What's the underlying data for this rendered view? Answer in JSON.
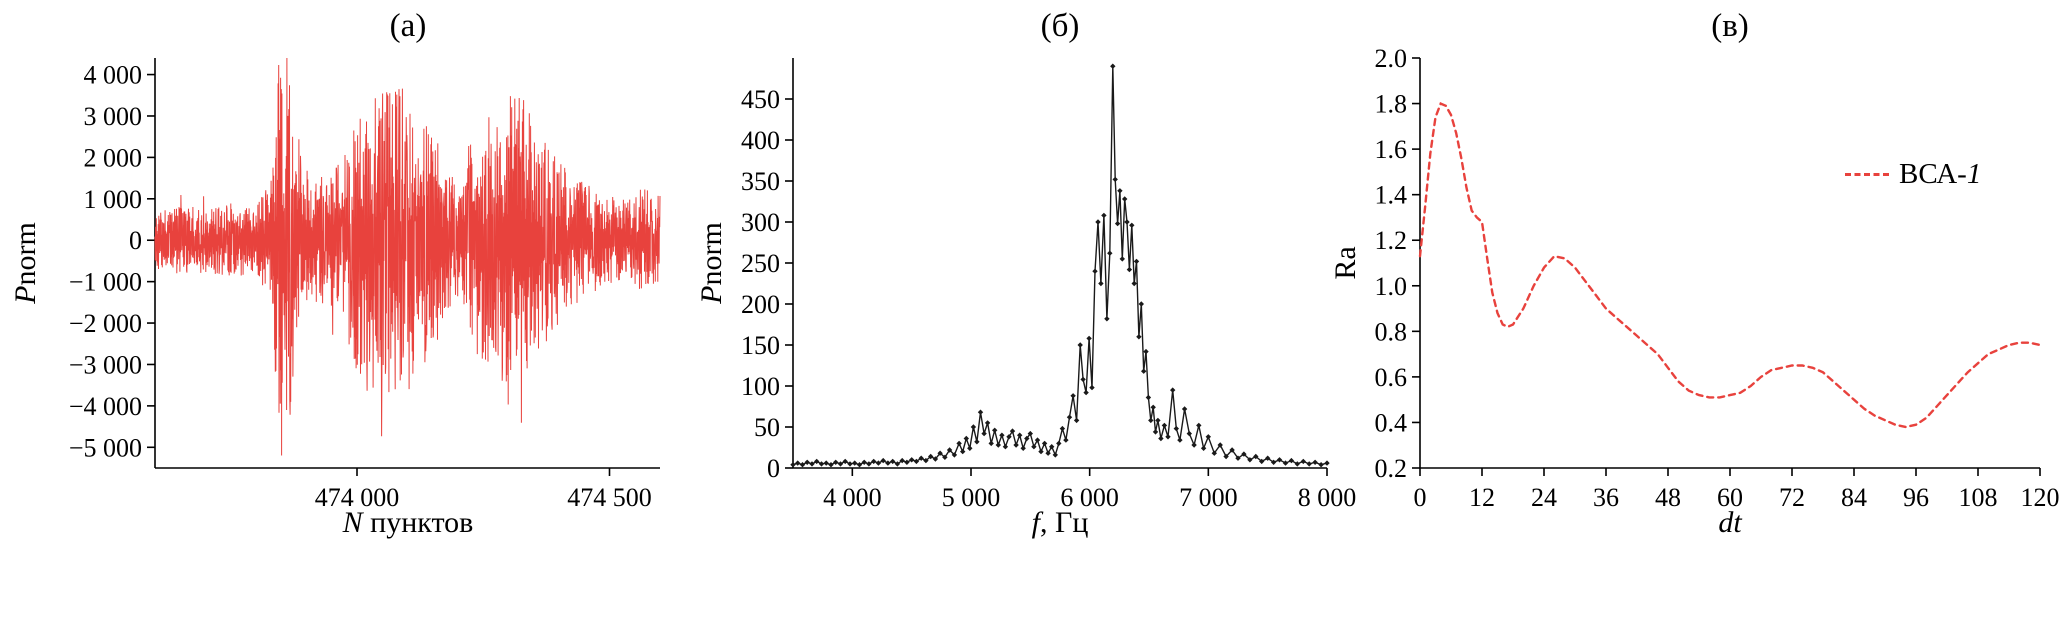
{
  "chart_data": [
    {
      "id": "a",
      "type": "line",
      "title": "(а)",
      "xlabel": {
        "italic": "N",
        "normal": " пунктов"
      },
      "ylabel": {
        "italic": "P",
        "normal": "norm"
      },
      "color": "#e8423d",
      "grid": false,
      "xlim": [
        473600,
        474600
      ],
      "ylim": [
        -5500,
        4400
      ],
      "xticks": [
        474000,
        474500
      ],
      "xtick_labels": [
        "474 000",
        "474 500"
      ],
      "yticks": [
        4000,
        3000,
        2000,
        1000,
        0,
        -1000,
        -2000,
        -3000,
        -4000,
        -5000
      ],
      "ytick_labels": [
        "4 000",
        "3 000",
        "2 000",
        "1 000",
        "0",
        "−1 000",
        "−2 000",
        "−3 000",
        "−4 000",
        "−5 000"
      ],
      "series_description": "dense noisy seismic-like waveform oscillating around 0; amplitude envelope (N, ±Pnorm) sampled below; sharp spike near N=473850 reaching about −5500 and +4300; strong bursts near 474000–474150 and 474250–474380; moderate ±700–1500 elsewhere",
      "envelope": [
        [
          473600,
          700
        ],
        [
          473650,
          850
        ],
        [
          473700,
          800
        ],
        [
          473750,
          900
        ],
        [
          473800,
          800
        ],
        [
          473830,
          1500
        ],
        [
          473845,
          5600
        ],
        [
          473862,
          5600
        ],
        [
          473875,
          2400
        ],
        [
          473910,
          1500
        ],
        [
          473950,
          1600
        ],
        [
          473985,
          2800
        ],
        [
          474020,
          3700
        ],
        [
          474070,
          3900
        ],
        [
          474120,
          3500
        ],
        [
          474160,
          2400
        ],
        [
          474195,
          1400
        ],
        [
          474230,
          2600
        ],
        [
          474270,
          3400
        ],
        [
          474320,
          3600
        ],
        [
          474370,
          2600
        ],
        [
          474410,
          1800
        ],
        [
          474450,
          1400
        ],
        [
          474490,
          1100
        ],
        [
          474530,
          1000
        ],
        [
          474570,
          1300
        ],
        [
          474600,
          1100
        ]
      ],
      "noise_seed": 7,
      "points_count": 1600
    },
    {
      "id": "b",
      "type": "line",
      "title": "(б)",
      "xlabel": {
        "italic": "f",
        "normal": ", Гц"
      },
      "ylabel": {
        "italic": "P",
        "normal": "norm"
      },
      "color": "#1a1a1a",
      "grid": false,
      "marker": "diamond",
      "xlim": [
        3500,
        8000
      ],
      "ylim": [
        0,
        500
      ],
      "xticks": [
        4000,
        5000,
        6000,
        7000,
        8000
      ],
      "xtick_labels": [
        "4 000",
        "5 000",
        "6 000",
        "7 000",
        "8 000"
      ],
      "yticks": [
        0,
        50,
        100,
        150,
        200,
        250,
        300,
        350,
        400,
        450
      ],
      "ytick_labels": [
        "0",
        "50",
        "100",
        "150",
        "200",
        "250",
        "300",
        "350",
        "400",
        "450"
      ],
      "points": [
        [
          3500,
          4
        ],
        [
          3540,
          6
        ],
        [
          3580,
          4
        ],
        [
          3620,
          7
        ],
        [
          3660,
          5
        ],
        [
          3700,
          8
        ],
        [
          3740,
          5
        ],
        [
          3780,
          6
        ],
        [
          3820,
          4
        ],
        [
          3860,
          7
        ],
        [
          3900,
          5
        ],
        [
          3940,
          8
        ],
        [
          3980,
          5
        ],
        [
          4020,
          6
        ],
        [
          4060,
          4
        ],
        [
          4100,
          7
        ],
        [
          4140,
          5
        ],
        [
          4180,
          8
        ],
        [
          4220,
          6
        ],
        [
          4260,
          9
        ],
        [
          4300,
          6
        ],
        [
          4340,
          8
        ],
        [
          4380,
          5
        ],
        [
          4420,
          9
        ],
        [
          4460,
          7
        ],
        [
          4500,
          10
        ],
        [
          4540,
          8
        ],
        [
          4580,
          12
        ],
        [
          4620,
          9
        ],
        [
          4660,
          14
        ],
        [
          4700,
          11
        ],
        [
          4740,
          18
        ],
        [
          4780,
          13
        ],
        [
          4820,
          22
        ],
        [
          4860,
          16
        ],
        [
          4900,
          30
        ],
        [
          4930,
          20
        ],
        [
          4960,
          36
        ],
        [
          4990,
          24
        ],
        [
          5020,
          50
        ],
        [
          5050,
          32
        ],
        [
          5080,
          68
        ],
        [
          5110,
          42
        ],
        [
          5140,
          55
        ],
        [
          5170,
          30
        ],
        [
          5200,
          46
        ],
        [
          5230,
          28
        ],
        [
          5260,
          40
        ],
        [
          5290,
          26
        ],
        [
          5320,
          38
        ],
        [
          5350,
          45
        ],
        [
          5380,
          28
        ],
        [
          5410,
          40
        ],
        [
          5440,
          24
        ],
        [
          5470,
          36
        ],
        [
          5500,
          42
        ],
        [
          5530,
          26
        ],
        [
          5560,
          34
        ],
        [
          5590,
          20
        ],
        [
          5620,
          30
        ],
        [
          5650,
          18
        ],
        [
          5680,
          26
        ],
        [
          5710,
          16
        ],
        [
          5740,
          30
        ],
        [
          5770,
          48
        ],
        [
          5800,
          34
        ],
        [
          5830,
          62
        ],
        [
          5860,
          88
        ],
        [
          5890,
          58
        ],
        [
          5920,
          150
        ],
        [
          5945,
          108
        ],
        [
          5970,
          92
        ],
        [
          5995,
          158
        ],
        [
          6020,
          98
        ],
        [
          6045,
          240
        ],
        [
          6070,
          300
        ],
        [
          6095,
          225
        ],
        [
          6120,
          308
        ],
        [
          6145,
          182
        ],
        [
          6170,
          262
        ],
        [
          6195,
          490
        ],
        [
          6215,
          352
        ],
        [
          6235,
          298
        ],
        [
          6255,
          338
        ],
        [
          6275,
          255
        ],
        [
          6295,
          328
        ],
        [
          6315,
          300
        ],
        [
          6335,
          242
        ],
        [
          6355,
          296
        ],
        [
          6375,
          225
        ],
        [
          6395,
          252
        ],
        [
          6415,
          160
        ],
        [
          6435,
          200
        ],
        [
          6455,
          118
        ],
        [
          6475,
          142
        ],
        [
          6495,
          86
        ],
        [
          6515,
          58
        ],
        [
          6535,
          74
        ],
        [
          6555,
          44
        ],
        [
          6575,
          58
        ],
        [
          6600,
          36
        ],
        [
          6630,
          52
        ],
        [
          6660,
          38
        ],
        [
          6700,
          95
        ],
        [
          6730,
          48
        ],
        [
          6760,
          34
        ],
        [
          6800,
          72
        ],
        [
          6840,
          42
        ],
        [
          6880,
          28
        ],
        [
          6920,
          52
        ],
        [
          6960,
          24
        ],
        [
          7000,
          38
        ],
        [
          7050,
          18
        ],
        [
          7100,
          28
        ],
        [
          7150,
          14
        ],
        [
          7200,
          22
        ],
        [
          7250,
          12
        ],
        [
          7300,
          17
        ],
        [
          7350,
          10
        ],
        [
          7400,
          14
        ],
        [
          7450,
          8
        ],
        [
          7500,
          12
        ],
        [
          7550,
          7
        ],
        [
          7600,
          10
        ],
        [
          7650,
          6
        ],
        [
          7700,
          9
        ],
        [
          7750,
          5
        ],
        [
          7800,
          8
        ],
        [
          7850,
          5
        ],
        [
          7900,
          7
        ],
        [
          7950,
          4
        ],
        [
          8000,
          6
        ]
      ]
    },
    {
      "id": "c",
      "type": "line",
      "title": "(в)",
      "xlabel": {
        "italic": "dt",
        "normal": ""
      },
      "ylabel": {
        "italic": "",
        "normal": "Ra"
      },
      "color": "#e8423d",
      "grid": false,
      "line_style": "dashed",
      "legend": {
        "prefix": "ВСА-",
        "italic_suffix": "1",
        "position": "upper right inside"
      },
      "xlim": [
        0,
        120
      ],
      "ylim": [
        0.2,
        2.0
      ],
      "xticks": [
        0,
        12,
        24,
        36,
        48,
        60,
        72,
        84,
        96,
        108,
        120
      ],
      "xtick_labels": [
        "0",
        "12",
        "24",
        "36",
        "48",
        "60",
        "72",
        "84",
        "96",
        "108",
        "120"
      ],
      "yticks": [
        0.2,
        0.4,
        0.6,
        0.8,
        1.0,
        1.2,
        1.4,
        1.6,
        1.8,
        2.0
      ],
      "ytick_labels": [
        "0.2",
        "0.4",
        "0.6",
        "0.8",
        "1.0",
        "1.2",
        "1.4",
        "1.6",
        "1.8",
        "2.0"
      ],
      "points": [
        [
          0,
          1.13
        ],
        [
          1,
          1.35
        ],
        [
          2,
          1.58
        ],
        [
          3,
          1.74
        ],
        [
          4,
          1.8
        ],
        [
          5,
          1.79
        ],
        [
          6,
          1.75
        ],
        [
          7,
          1.67
        ],
        [
          8,
          1.56
        ],
        [
          9,
          1.43
        ],
        [
          10,
          1.33
        ],
        [
          11,
          1.3
        ],
        [
          12,
          1.28
        ],
        [
          13,
          1.12
        ],
        [
          14,
          0.97
        ],
        [
          15,
          0.88
        ],
        [
          16,
          0.83
        ],
        [
          17,
          0.82
        ],
        [
          18,
          0.83
        ],
        [
          20,
          0.9
        ],
        [
          22,
          1.0
        ],
        [
          24,
          1.08
        ],
        [
          26,
          1.13
        ],
        [
          28,
          1.12
        ],
        [
          30,
          1.08
        ],
        [
          32,
          1.02
        ],
        [
          34,
          0.96
        ],
        [
          36,
          0.9
        ],
        [
          38,
          0.86
        ],
        [
          40,
          0.82
        ],
        [
          42,
          0.78
        ],
        [
          44,
          0.74
        ],
        [
          46,
          0.7
        ],
        [
          48,
          0.64
        ],
        [
          50,
          0.58
        ],
        [
          52,
          0.54
        ],
        [
          54,
          0.52
        ],
        [
          56,
          0.51
        ],
        [
          58,
          0.51
        ],
        [
          60,
          0.52
        ],
        [
          62,
          0.53
        ],
        [
          64,
          0.56
        ],
        [
          66,
          0.6
        ],
        [
          68,
          0.63
        ],
        [
          70,
          0.64
        ],
        [
          72,
          0.65
        ],
        [
          74,
          0.65
        ],
        [
          76,
          0.64
        ],
        [
          78,
          0.62
        ],
        [
          80,
          0.58
        ],
        [
          82,
          0.54
        ],
        [
          84,
          0.5
        ],
        [
          86,
          0.46
        ],
        [
          88,
          0.43
        ],
        [
          90,
          0.41
        ],
        [
          92,
          0.39
        ],
        [
          94,
          0.38
        ],
        [
          96,
          0.39
        ],
        [
          98,
          0.42
        ],
        [
          100,
          0.47
        ],
        [
          102,
          0.52
        ],
        [
          104,
          0.57
        ],
        [
          106,
          0.62
        ],
        [
          108,
          0.66
        ],
        [
          110,
          0.7
        ],
        [
          112,
          0.72
        ],
        [
          114,
          0.74
        ],
        [
          116,
          0.75
        ],
        [
          118,
          0.75
        ],
        [
          120,
          0.74
        ]
      ]
    }
  ]
}
